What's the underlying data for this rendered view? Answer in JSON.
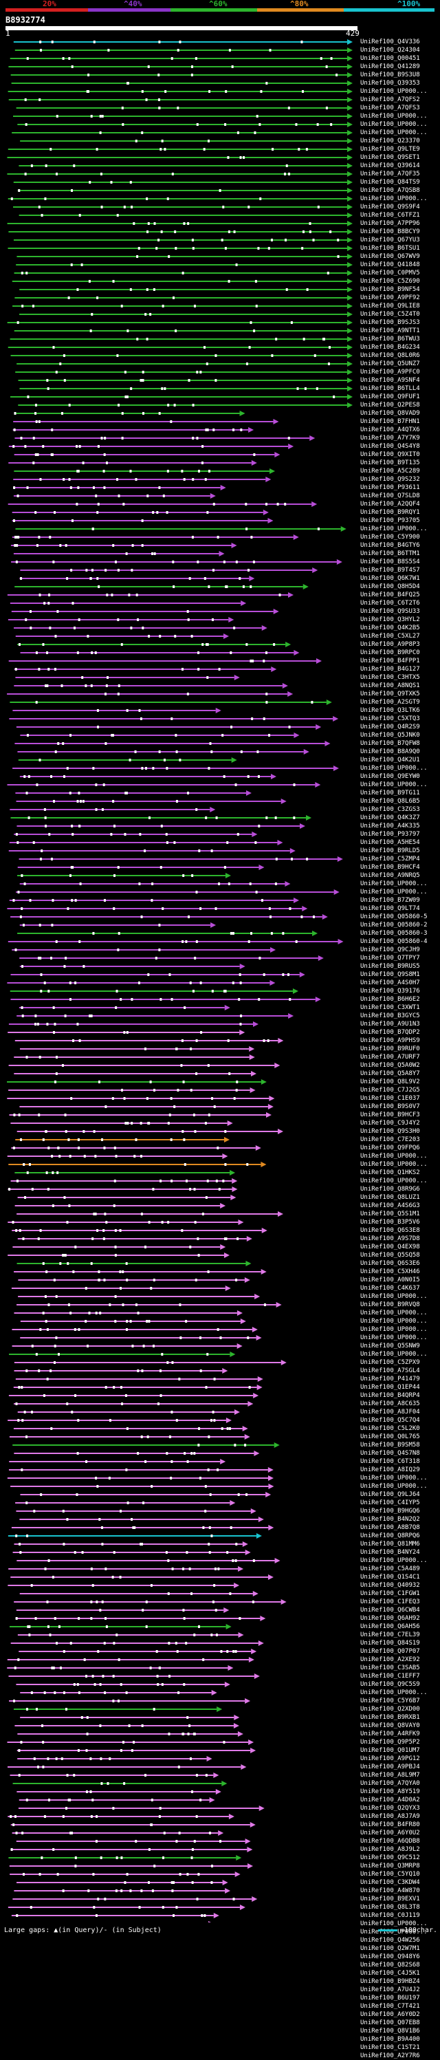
{
  "legend": {
    "labels": [
      "20%",
      "^40%",
      "^60%",
      "^80%",
      "^100%"
    ],
    "colors": [
      "#d42020",
      "#8a34c8",
      "#2db52d",
      "#e08a20",
      "#19c3cf"
    ]
  },
  "query": {
    "id": "B8932774",
    "ruler_start": "1",
    "ruler_end": "429",
    "length": 429
  },
  "hits": [
    "UniRef100_Q4V336",
    "UniRef100_Q24304",
    "UniRef100_Q00451",
    "UniRef100_Q41289",
    "UniRef100_B9S3U8",
    "UniRef100_Q39353",
    "UniRef100_UP000...",
    "UniRef100_A7QFS2",
    "UniRef100_A7QFS3",
    "UniRef100_UP000...",
    "UniRef100_UP000...",
    "UniRef100_UP000...",
    "UniRef100_Q23370",
    "UniRef100_Q9LTE9",
    "UniRef100_Q9SET1",
    "UniRef100_Q39614",
    "UniRef100_A7QF35",
    "UniRef100_Q84TS9",
    "UniRef100_A7QSB8",
    "UniRef100_UP000...",
    "UniRef100_Q9S9F4",
    "UniRef100_C6TFZ1",
    "UniRef100_A7PP96",
    "UniRef100_B8BCY9",
    "UniRef100_Q67YU3",
    "UniRef100_B6TSU1",
    "UniRef100_Q67WV9",
    "UniRef100_Q41848",
    "UniRef100_C0PMV5",
    "UniRef100_C5Z690",
    "UniRef100_B9NF54",
    "UniRef100_A9PF92",
    "UniRef100_Q9LIE8",
    "UniRef100_C5Z4T0",
    "UniRef100_B9SJS3",
    "UniRef100_A9NTT1",
    "UniRef100_B6TWU3",
    "UniRef100_B4G234",
    "UniRef100_Q8L0R6",
    "UniRef100_Q5UNZ7",
    "UniRef100_A9PFC0",
    "UniRef100_A9SNF4",
    "UniRef100_B6TLL4",
    "UniRef100_Q9FUF1",
    "UniRef100_Q2PES8",
    "UniRef100_Q8VAD9",
    "UniRef100_B7FHN1",
    "UniRef100_A4QTX6",
    "UniRef100_A7Y7K9",
    "UniRef100_Q4S4Y8",
    "UniRef100_Q9XIT0",
    "UniRef100_B9T135",
    "UniRef100_A5C289",
    "UniRef100_Q9S232",
    "UniRef100_P93611",
    "UniRef100_Q7SLD8",
    "UniRef100_A2QQF4",
    "UniRef100_B9RQY1",
    "UniRef100_P93705",
    "UniRef100_UP000...",
    "UniRef100_C5Y900",
    "UniRef100_B4GTY6",
    "UniRef100_B6TTM1",
    "UniRef100_B8S5S4",
    "UniRef100_B9T4S7",
    "UniRef100_Q6K7W1",
    "UniRef100_Q8H5D4",
    "UniRef100_B4FQ25",
    "UniRef100_C6T2T6",
    "UniRef100_Q9SU33",
    "UniRef100_Q3HYL2",
    "UniRef100_Q4K2B5",
    "UniRef100_C5XL27",
    "UniRef100_A9P8P3",
    "UniRef100_B9RPC0",
    "UniRef100_B4FPP1",
    "UniRef100_B4G127",
    "UniRef100_C3HTX5",
    "UniRef100_A8NQS1",
    "UniRef100_Q9TXK5",
    "UniRef100_A2SGT9",
    "UniRef100_Q3LTK6",
    "UniRef100_C5XTQ3",
    "UniRef100_Q4R2S9",
    "UniRef100_Q5JNK0",
    "UniRef100_B7QFW8",
    "UniRef100_B8A9Q0",
    "UniRef100_Q4K2U1",
    "UniRef100_UP000...",
    "UniRef100_Q9EYW0",
    "UniRef100_UP000...",
    "UniRef100_B9TG11",
    "UniRef100_Q8L6B5",
    "UniRef100_C3ZGS3",
    "UniRef100_Q4K3Z7",
    "UniRef100_A4K335",
    "UniRef100_P93797",
    "UniRef100_A5HE54",
    "UniRef100_B9RLD5",
    "UniRef100_C5ZMP4",
    "UniRef100_B9HCF4",
    "UniRef100_A9NRQ5",
    "UniRef100_UP000...",
    "UniRef100_UP000...",
    "UniRef100_B7ZW09",
    "UniRef100_Q9LT74",
    "UniRef100_Q05860-5",
    "UniRef100_Q05860-2",
    "UniRef100_Q05860-3",
    "UniRef100_Q05860-4",
    "UniRef100_Q9CJH9",
    "UniRef100_Q7TPY7",
    "UniRef100_B9RUS5",
    "UniRef100_Q9S8M1",
    "UniRef100_A4S0H7",
    "UniRef100_Q39176",
    "UniRef100_B6H6E2",
    "UniRef100_C3XWT1",
    "UniRef100_B3GYC5",
    "UniRef100_A9U1N3",
    "UniRef100_B7QDP2",
    "UniRef100_A9PHS9",
    "UniRef100_B9RUF0",
    "UniRef100_A7URF7",
    "UniRef100_Q5A0W2",
    "UniRef100_Q5A8Y7",
    "UniRef100_Q8L9V2",
    "UniRef100_C7J2G5",
    "UniRef100_C1E037",
    "UniRef100_B9S0V7",
    "UniRef100_B9HCF3",
    "UniRef100_C9J4Y2",
    "UniRef100_Q9S3H0",
    "UniRef100_C7E203",
    "UniRef100_Q9FPQ6",
    "UniRef100_UP000...",
    "UniRef100_UP000...",
    "UniRef100_Q1HKS2",
    "UniRef100_UP000...",
    "UniRef100_Q8R9G6",
    "UniRef100_Q8LUZ1",
    "UniRef100_A4S6G3",
    "UniRef100_Q5S1M1",
    "UniRef100_B3P5V6",
    "UniRef100_Q6S3E8",
    "UniRef100_A9S7D8",
    "UniRef100_Q4EX98",
    "UniRef100_Q5SQ58",
    "UniRef100_Q6S3E6",
    "UniRef100_C5XH46",
    "UniRef100_A0N0I5",
    "UniRef100_C4K637",
    "UniRef100_UP000...",
    "UniRef100_B9RVQ8",
    "UniRef100_UP000...",
    "UniRef100_UP000...",
    "UniRef100_UP000...",
    "UniRef100_UP000...",
    "UniRef100_Q5SNW9",
    "UniRef100_UP000...",
    "UniRef100_C5ZPX9",
    "UniRef100_A7SGL4",
    "UniRef100_P41479",
    "UniRef100_Q1EP44",
    "UniRef100_B4QRP4",
    "UniRef100_A8C635",
    "UniRef100_A8JF04",
    "UniRef100_Q5C7Q4",
    "UniRef100_C5L2K0",
    "UniRef100_Q0L765",
    "UniRef100_B9SM58",
    "UniRef100_Q4S7N8",
    "UniRef100_C6T318",
    "UniRef100_A8IQ29",
    "UniRef100_UP000...",
    "UniRef100_UP000...",
    "UniRef100_Q9LJ64",
    "UniRef100_C4IYP5",
    "UniRef100_B9HGQ6",
    "UniRef100_B4N2Q2",
    "UniRef100_A8B7Q8",
    "UniRef100_Q8RPQ6",
    "UniRef100_Q81MM6",
    "UniRef100_B4NY24",
    "UniRef100_UP000...",
    "UniRef100_C5A489",
    "UniRef100_Q1S4C1",
    "UniRef100_Q40932",
    "UniRef100_C1FGW1",
    "UniRef100_C1FEQ3",
    "UniRef100_Q6CWB4",
    "UniRef100_Q6AH92",
    "UniRef100_Q6AH56",
    "UniRef100_C7EL39",
    "UniRef100_Q84S19",
    "UniRef100_Q07P07",
    "UniRef100_A2XE92",
    "UniRef100_C3SAB5",
    "UniRef100_C1EFF7",
    "UniRef100_Q9C5S9",
    "UniRef100_UP000...",
    "UniRef100_C5Y6B7",
    "UniRef100_Q2XD00",
    "UniRef100_B9RXB1",
    "UniRef100_Q8VAY0",
    "UniRef100_A4RFK9",
    "UniRef100_Q9P5P2",
    "UniRef100_Q01UM7",
    "UniRef100_A9PG12",
    "UniRef100_A9PBJ4",
    "UniRef100_A8L9M7",
    "UniRef100_A7QYA0",
    "UniRef100_A8Y519",
    "UniRef100_A4D0A2",
    "UniRef100_Q2QYX3",
    "UniRef100_A8J7A9",
    "UniRef100_B4FR80",
    "UniRef100_A6Y0U2",
    "UniRef100_A6QDB8",
    "UniRef100_A8J9L2",
    "UniRef100_Q9C512",
    "UniRef100_Q3MRP8",
    "UniRef100_C5YQ10",
    "UniRef100_C3KDW4",
    "UniRef100_A4W870",
    "UniRef100_B9EXV1",
    "UniRef100_Q8L3T8",
    "UniRef100_C0J119",
    "UniRef100_UP000...",
    "UniRef100_UP000...",
    "UniRef100_Q4W256",
    "UniRef100_Q2W7M1",
    "UniRef100_Q948Y6",
    "UniRef100_Q82S68",
    "UniRef100_C4J5K1",
    "UniRef100_B9HBZ4",
    "UniRef100_A7U4J2",
    "UniRef100_B6U197",
    "UniRef100_C7T421",
    "UniRef100_A6Y0D2",
    "UniRef100_Q07EB8",
    "UniRef100_Q8V1B6",
    "UniRef100_B9A400",
    "UniRef100_C1ST21",
    "UniRef100_A2Y7R6"
  ],
  "footer": {
    "legend_text": "Large gaps: ▲(in Query)/- (in Subject)",
    "scale_text": "=100char."
  }
}
